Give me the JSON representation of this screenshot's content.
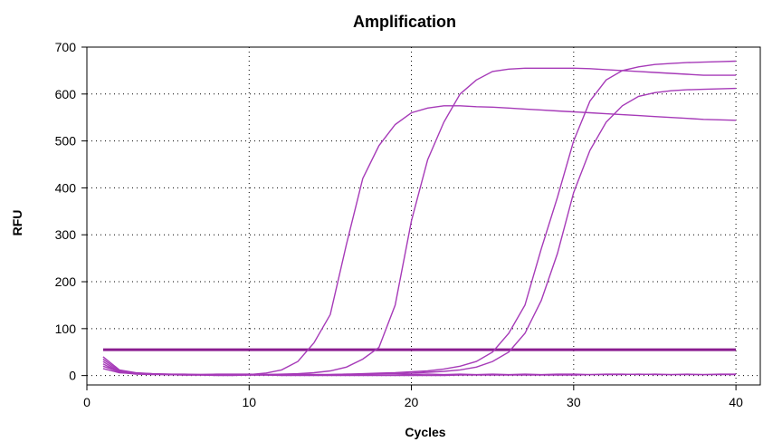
{
  "chart_data": {
    "type": "line",
    "title": "Amplification",
    "xlabel": "Cycles",
    "ylabel": "RFU",
    "xlim": [
      0,
      41.5
    ],
    "ylim": [
      -20,
      700
    ],
    "xticks": [
      0,
      10,
      20,
      30,
      40
    ],
    "yticks": [
      0,
      100,
      200,
      300,
      400,
      500,
      600,
      700
    ],
    "grid": true,
    "curve_color": "#a63ab8",
    "threshold_color": "#8a1c8f",
    "threshold": 55,
    "series": [
      {
        "x": [
          1,
          2,
          3,
          4,
          5,
          6,
          7,
          8,
          9,
          10,
          11,
          12,
          13,
          14,
          15,
          16,
          17,
          18,
          19,
          20,
          21,
          22,
          23,
          24,
          25,
          26,
          27,
          28,
          29,
          30,
          31,
          32,
          33,
          34,
          35,
          36,
          37,
          38,
          39,
          40
        ],
        "values": [
          40,
          12,
          6,
          4,
          3,
          2,
          2,
          2,
          2,
          2,
          5,
          12,
          30,
          70,
          130,
          280,
          420,
          490,
          535,
          560,
          570,
          575,
          575,
          573,
          572,
          570,
          568,
          566,
          564,
          562,
          560,
          558,
          556,
          554,
          552,
          550,
          548,
          546,
          545,
          544
        ]
      },
      {
        "x": [
          1,
          2,
          3,
          4,
          5,
          6,
          7,
          8,
          9,
          10,
          11,
          12,
          13,
          14,
          15,
          16,
          17,
          18,
          19,
          20,
          21,
          22,
          23,
          24,
          25,
          26,
          27,
          28,
          29,
          30,
          31,
          32,
          33,
          34,
          35,
          36,
          37,
          38,
          39,
          40
        ],
        "values": [
          35,
          10,
          5,
          3,
          2,
          2,
          2,
          2,
          2,
          2,
          2,
          3,
          4,
          6,
          10,
          18,
          35,
          60,
          150,
          330,
          460,
          540,
          600,
          630,
          648,
          653,
          655,
          655,
          655,
          655,
          654,
          652,
          650,
          648,
          646,
          644,
          642,
          640,
          640,
          640
        ]
      },
      {
        "x": [
          1,
          2,
          3,
          4,
          5,
          6,
          7,
          8,
          9,
          10,
          11,
          12,
          13,
          14,
          15,
          16,
          17,
          18,
          19,
          20,
          21,
          22,
          23,
          24,
          25,
          26,
          27,
          28,
          29,
          30,
          31,
          32,
          33,
          34,
          35,
          36,
          37,
          38,
          39,
          40
        ],
        "values": [
          30,
          8,
          4,
          3,
          2,
          2,
          2,
          2,
          2,
          2,
          2,
          2,
          2,
          2,
          2,
          3,
          4,
          5,
          6,
          8,
          10,
          14,
          20,
          30,
          50,
          90,
          150,
          270,
          380,
          500,
          585,
          630,
          650,
          658,
          663,
          665,
          667,
          668,
          669,
          670
        ]
      },
      {
        "x": [
          1,
          2,
          3,
          4,
          5,
          6,
          7,
          8,
          9,
          10,
          11,
          12,
          13,
          14,
          15,
          16,
          17,
          18,
          19,
          20,
          21,
          22,
          23,
          24,
          25,
          26,
          27,
          28,
          29,
          30,
          31,
          32,
          33,
          34,
          35,
          36,
          37,
          38,
          39,
          40
        ],
        "values": [
          25,
          7,
          3,
          2,
          2,
          1,
          1,
          1,
          1,
          1,
          1,
          1,
          1,
          1,
          2,
          2,
          3,
          3,
          4,
          5,
          7,
          9,
          12,
          18,
          30,
          50,
          90,
          160,
          260,
          390,
          480,
          540,
          575,
          595,
          603,
          607,
          609,
          610,
          611,
          612
        ]
      },
      {
        "x": [
          1,
          2,
          3,
          4,
          5,
          6,
          7,
          8,
          9,
          10,
          11,
          12,
          13,
          14,
          15,
          16,
          17,
          18,
          19,
          20,
          21,
          22,
          23,
          24,
          25,
          26,
          27,
          28,
          29,
          30,
          31,
          32,
          33,
          34,
          35,
          36,
          37,
          38,
          39,
          40
        ],
        "values": [
          20,
          8,
          5,
          4,
          3,
          3,
          2,
          3,
          3,
          3,
          2,
          2,
          3,
          2,
          2,
          3,
          2,
          3,
          3,
          2,
          3,
          2,
          3,
          2,
          3,
          2,
          3,
          2,
          3,
          3,
          2,
          3,
          3,
          2,
          3,
          2,
          3,
          2,
          3,
          3
        ]
      },
      {
        "x": [
          1,
          2,
          3,
          4,
          5,
          6,
          7,
          8,
          9,
          10,
          11,
          12,
          13,
          14,
          15,
          16,
          17,
          18,
          19,
          20,
          21,
          22,
          23,
          24,
          25,
          26,
          27,
          28,
          29,
          30,
          31,
          32,
          33,
          34,
          35,
          36,
          37,
          38,
          39,
          40
        ],
        "values": [
          15,
          6,
          4,
          3,
          2,
          1,
          1,
          0,
          0,
          1,
          1,
          0,
          0,
          0,
          0,
          0,
          0,
          0,
          0,
          0,
          0,
          0,
          1,
          1,
          1,
          1,
          1,
          1,
          1,
          1,
          2,
          2,
          2,
          3,
          2,
          2,
          2,
          2,
          2,
          2
        ]
      }
    ]
  }
}
